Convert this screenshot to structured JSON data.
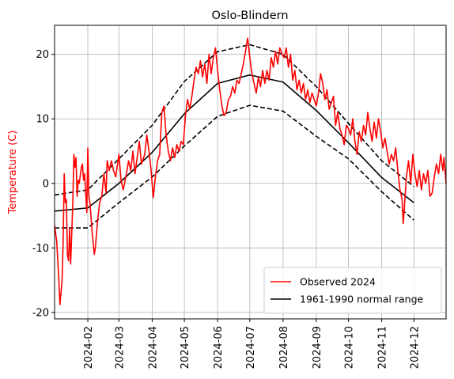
{
  "chart_data": {
    "type": "line",
    "title": "Oslo-Blindern",
    "ylabel": "Temperature (C)",
    "xlabel": "",
    "ylim": [
      -21,
      24.5
    ],
    "xlim": [
      "2024-01-01",
      "2024-12-31"
    ],
    "grid": true,
    "legend_position": "bottom-right",
    "x_ticks": [
      "2024-02",
      "2024-03",
      "2024-04",
      "2024-05",
      "2024-06",
      "2024-07",
      "2024-08",
      "2024-09",
      "2024-10",
      "2024-11",
      "2024-12"
    ],
    "y_ticks": [
      -20,
      -10,
      0,
      10,
      20
    ],
    "colors": {
      "observed": "#ff0000",
      "normal": "#000000",
      "ylabel": "#ff0000",
      "grid": "#b0b0b0"
    },
    "series": [
      {
        "name": "Observed 2024",
        "color": "#ff0000",
        "points": [
          [
            "2024-01-01",
            -6.5
          ],
          [
            "2024-01-03",
            -9.0
          ],
          [
            "2024-01-05",
            -15.0
          ],
          [
            "2024-01-06",
            -18.8
          ],
          [
            "2024-01-08",
            -15.0
          ],
          [
            "2024-01-09",
            -9.0
          ],
          [
            "2024-01-10",
            1.5
          ],
          [
            "2024-01-11",
            -3.0
          ],
          [
            "2024-01-12",
            -2.5
          ],
          [
            "2024-01-13",
            -11.0
          ],
          [
            "2024-01-14",
            -12.0
          ],
          [
            "2024-01-15",
            -7.0
          ],
          [
            "2024-01-16",
            -12.5
          ],
          [
            "2024-01-18",
            -3.0
          ],
          [
            "2024-01-19",
            4.5
          ],
          [
            "2024-01-20",
            2.5
          ],
          [
            "2024-01-21",
            4.0
          ],
          [
            "2024-01-22",
            -2.0
          ],
          [
            "2024-01-23",
            0.5
          ],
          [
            "2024-01-24",
            0.0
          ],
          [
            "2024-01-26",
            2.5
          ],
          [
            "2024-01-27",
            3.0
          ],
          [
            "2024-01-28",
            0.5
          ],
          [
            "2024-01-29",
            1.5
          ],
          [
            "2024-01-31",
            -4.5
          ],
          [
            "2024-02-01",
            5.5
          ],
          [
            "2024-02-02",
            -2.0
          ],
          [
            "2024-02-03",
            -3.0
          ],
          [
            "2024-02-05",
            -7.5
          ],
          [
            "2024-02-07",
            -11.0
          ],
          [
            "2024-02-08",
            -10.0
          ],
          [
            "2024-02-10",
            -6.0
          ],
          [
            "2024-02-12",
            -3.0
          ],
          [
            "2024-02-14",
            -2.0
          ],
          [
            "2024-02-16",
            1.5
          ],
          [
            "2024-02-18",
            -1.5
          ],
          [
            "2024-02-19",
            3.5
          ],
          [
            "2024-02-21",
            2.0
          ],
          [
            "2024-02-23",
            3.5
          ],
          [
            "2024-02-25",
            2.0
          ],
          [
            "2024-02-27",
            1.0
          ],
          [
            "2024-03-01",
            4.5
          ],
          [
            "2024-03-03",
            0.5
          ],
          [
            "2024-03-05",
            -1.0
          ],
          [
            "2024-03-08",
            1.5
          ],
          [
            "2024-03-10",
            3.5
          ],
          [
            "2024-03-12",
            2.0
          ],
          [
            "2024-03-14",
            5.0
          ],
          [
            "2024-03-16",
            1.5
          ],
          [
            "2024-03-18",
            4.0
          ],
          [
            "2024-03-20",
            6.5
          ],
          [
            "2024-03-22",
            3.0
          ],
          [
            "2024-03-25",
            4.5
          ],
          [
            "2024-03-27",
            7.5
          ],
          [
            "2024-03-29",
            5.0
          ],
          [
            "2024-03-31",
            2.0
          ],
          [
            "2024-04-02",
            -2.2
          ],
          [
            "2024-04-04",
            1.0
          ],
          [
            "2024-04-06",
            3.5
          ],
          [
            "2024-04-08",
            4.5
          ],
          [
            "2024-04-10",
            11.0
          ],
          [
            "2024-04-12",
            12.0
          ],
          [
            "2024-04-14",
            7.5
          ],
          [
            "2024-04-16",
            5.0
          ],
          [
            "2024-04-18",
            3.5
          ],
          [
            "2024-04-20",
            5.5
          ],
          [
            "2024-04-22",
            4.0
          ],
          [
            "2024-04-24",
            6.0
          ],
          [
            "2024-04-26",
            5.0
          ],
          [
            "2024-04-28",
            6.5
          ],
          [
            "2024-04-30",
            6.0
          ],
          [
            "2024-05-02",
            10.5
          ],
          [
            "2024-05-04",
            13.0
          ],
          [
            "2024-05-06",
            11.5
          ],
          [
            "2024-05-08",
            13.5
          ],
          [
            "2024-05-10",
            16.0
          ],
          [
            "2024-05-12",
            18.0
          ],
          [
            "2024-05-14",
            17.0
          ],
          [
            "2024-05-16",
            19.0
          ],
          [
            "2024-05-18",
            16.5
          ],
          [
            "2024-05-20",
            18.5
          ],
          [
            "2024-05-22",
            15.5
          ],
          [
            "2024-05-24",
            20.0
          ],
          [
            "2024-05-26",
            17.0
          ],
          [
            "2024-05-28",
            19.5
          ],
          [
            "2024-05-30",
            21.0
          ],
          [
            "2024-06-01",
            17.5
          ],
          [
            "2024-06-03",
            14.5
          ],
          [
            "2024-06-05",
            12.0
          ],
          [
            "2024-06-07",
            10.5
          ],
          [
            "2024-06-09",
            11.0
          ],
          [
            "2024-06-11",
            13.0
          ],
          [
            "2024-06-13",
            13.5
          ],
          [
            "2024-06-15",
            15.0
          ],
          [
            "2024-06-17",
            14.0
          ],
          [
            "2024-06-19",
            16.0
          ],
          [
            "2024-06-21",
            15.5
          ],
          [
            "2024-06-23",
            17.0
          ],
          [
            "2024-06-25",
            18.5
          ],
          [
            "2024-06-27",
            20.5
          ],
          [
            "2024-06-29",
            22.5
          ],
          [
            "2024-07-01",
            19.5
          ],
          [
            "2024-07-03",
            17.0
          ],
          [
            "2024-07-05",
            15.5
          ],
          [
            "2024-07-07",
            14.0
          ],
          [
            "2024-07-09",
            16.5
          ],
          [
            "2024-07-11",
            15.0
          ],
          [
            "2024-07-13",
            17.5
          ],
          [
            "2024-07-15",
            15.5
          ],
          [
            "2024-07-17",
            17.5
          ],
          [
            "2024-07-19",
            16.0
          ],
          [
            "2024-07-21",
            19.5
          ],
          [
            "2024-07-23",
            18.0
          ],
          [
            "2024-07-25",
            20.5
          ],
          [
            "2024-07-27",
            18.5
          ],
          [
            "2024-07-29",
            21.0
          ],
          [
            "2024-07-31",
            20.0
          ],
          [
            "2024-08-02",
            19.5
          ],
          [
            "2024-08-04",
            21.0
          ],
          [
            "2024-08-06",
            18.0
          ],
          [
            "2024-08-08",
            20.0
          ],
          [
            "2024-08-10",
            16.0
          ],
          [
            "2024-08-12",
            17.5
          ],
          [
            "2024-08-14",
            14.5
          ],
          [
            "2024-08-16",
            16.0
          ],
          [
            "2024-08-18",
            14.0
          ],
          [
            "2024-08-20",
            15.5
          ],
          [
            "2024-08-22",
            13.0
          ],
          [
            "2024-08-24",
            14.5
          ],
          [
            "2024-08-26",
            12.5
          ],
          [
            "2024-08-28",
            14.0
          ],
          [
            "2024-08-30",
            13.0
          ],
          [
            "2024-09-01",
            12.0
          ],
          [
            "2024-09-03",
            14.0
          ],
          [
            "2024-09-05",
            17.0
          ],
          [
            "2024-09-07",
            15.5
          ],
          [
            "2024-09-09",
            13.0
          ],
          [
            "2024-09-11",
            14.5
          ],
          [
            "2024-09-13",
            11.5
          ],
          [
            "2024-09-15",
            12.5
          ],
          [
            "2024-09-17",
            13.5
          ],
          [
            "2024-09-19",
            9.0
          ],
          [
            "2024-09-21",
            11.0
          ],
          [
            "2024-09-23",
            8.5
          ],
          [
            "2024-09-25",
            7.5
          ],
          [
            "2024-09-27",
            6.0
          ],
          [
            "2024-09-29",
            9.0
          ],
          [
            "2024-10-01",
            8.5
          ],
          [
            "2024-10-03",
            7.5
          ],
          [
            "2024-10-05",
            10.0
          ],
          [
            "2024-10-07",
            6.5
          ],
          [
            "2024-10-09",
            4.5
          ],
          [
            "2024-10-11",
            8.0
          ],
          [
            "2024-10-13",
            6.5
          ],
          [
            "2024-10-15",
            9.0
          ],
          [
            "2024-10-17",
            7.5
          ],
          [
            "2024-10-19",
            11.0
          ],
          [
            "2024-10-21",
            8.5
          ],
          [
            "2024-10-23",
            6.5
          ],
          [
            "2024-10-25",
            9.5
          ],
          [
            "2024-10-27",
            7.0
          ],
          [
            "2024-10-29",
            10.0
          ],
          [
            "2024-10-31",
            8.0
          ],
          [
            "2024-11-02",
            5.5
          ],
          [
            "2024-11-04",
            7.0
          ],
          [
            "2024-11-06",
            5.0
          ],
          [
            "2024-11-08",
            3.0
          ],
          [
            "2024-11-10",
            4.5
          ],
          [
            "2024-11-12",
            3.5
          ],
          [
            "2024-11-14",
            5.5
          ],
          [
            "2024-11-16",
            2.0
          ],
          [
            "2024-11-18",
            -1.0
          ],
          [
            "2024-11-20",
            -2.5
          ],
          [
            "2024-11-21",
            -6.2
          ],
          [
            "2024-11-22",
            -4.0
          ],
          [
            "2024-11-24",
            1.0
          ],
          [
            "2024-11-26",
            3.5
          ],
          [
            "2024-11-28",
            0.0
          ],
          [
            "2024-11-30",
            4.5
          ],
          [
            "2024-12-02",
            1.5
          ],
          [
            "2024-12-04",
            -0.5
          ],
          [
            "2024-12-06",
            2.0
          ],
          [
            "2024-12-08",
            -1.0
          ],
          [
            "2024-12-10",
            1.5
          ],
          [
            "2024-12-12",
            0.0
          ],
          [
            "2024-12-14",
            2.0
          ],
          [
            "2024-12-16",
            -2.0
          ],
          [
            "2024-12-18",
            -1.5
          ],
          [
            "2024-12-20",
            1.0
          ],
          [
            "2024-12-22",
            3.0
          ],
          [
            "2024-12-24",
            1.5
          ],
          [
            "2024-12-26",
            4.5
          ],
          [
            "2024-12-28",
            2.0
          ],
          [
            "2024-12-29",
            4.0
          ],
          [
            "2024-12-31",
            0.0
          ]
        ]
      },
      {
        "name": "1961-1990 normal range",
        "color": "#000000",
        "style": "solid",
        "points": [
          [
            "2024-01-01",
            -4.3
          ],
          [
            "2024-02-01",
            -3.8
          ],
          [
            "2024-03-01",
            0.0
          ],
          [
            "2024-04-01",
            4.8
          ],
          [
            "2024-05-01",
            10.8
          ],
          [
            "2024-06-01",
            15.5
          ],
          [
            "2024-07-01",
            16.8
          ],
          [
            "2024-08-01",
            15.7
          ],
          [
            "2024-09-01",
            11.3
          ],
          [
            "2024-10-01",
            6.3
          ],
          [
            "2024-11-01",
            0.9
          ],
          [
            "2024-12-01",
            -3.0
          ]
        ]
      },
      {
        "name": "",
        "color": "#000000",
        "style": "dashed",
        "points": [
          [
            "2024-01-01",
            -1.8
          ],
          [
            "2024-02-01",
            -1.0
          ],
          [
            "2024-03-01",
            3.8
          ],
          [
            "2024-04-01",
            9.0
          ],
          [
            "2024-05-01",
            15.8
          ],
          [
            "2024-06-01",
            20.4
          ],
          [
            "2024-07-01",
            21.5
          ],
          [
            "2024-08-01",
            20.0
          ],
          [
            "2024-09-01",
            15.0
          ],
          [
            "2024-10-01",
            9.3
          ],
          [
            "2024-11-01",
            3.5
          ],
          [
            "2024-12-01",
            -0.5
          ]
        ]
      },
      {
        "name": "",
        "color": "#000000",
        "style": "dashed",
        "points": [
          [
            "2024-01-01",
            -6.9
          ],
          [
            "2024-02-01",
            -6.9
          ],
          [
            "2024-03-01",
            -3.0
          ],
          [
            "2024-04-01",
            1.0
          ],
          [
            "2024-05-01",
            5.8
          ],
          [
            "2024-06-01",
            10.4
          ],
          [
            "2024-07-01",
            12.1
          ],
          [
            "2024-08-01",
            11.2
          ],
          [
            "2024-09-01",
            7.3
          ],
          [
            "2024-10-01",
            3.8
          ],
          [
            "2024-11-01",
            -1.3
          ],
          [
            "2024-12-01",
            -5.7
          ]
        ]
      }
    ]
  }
}
